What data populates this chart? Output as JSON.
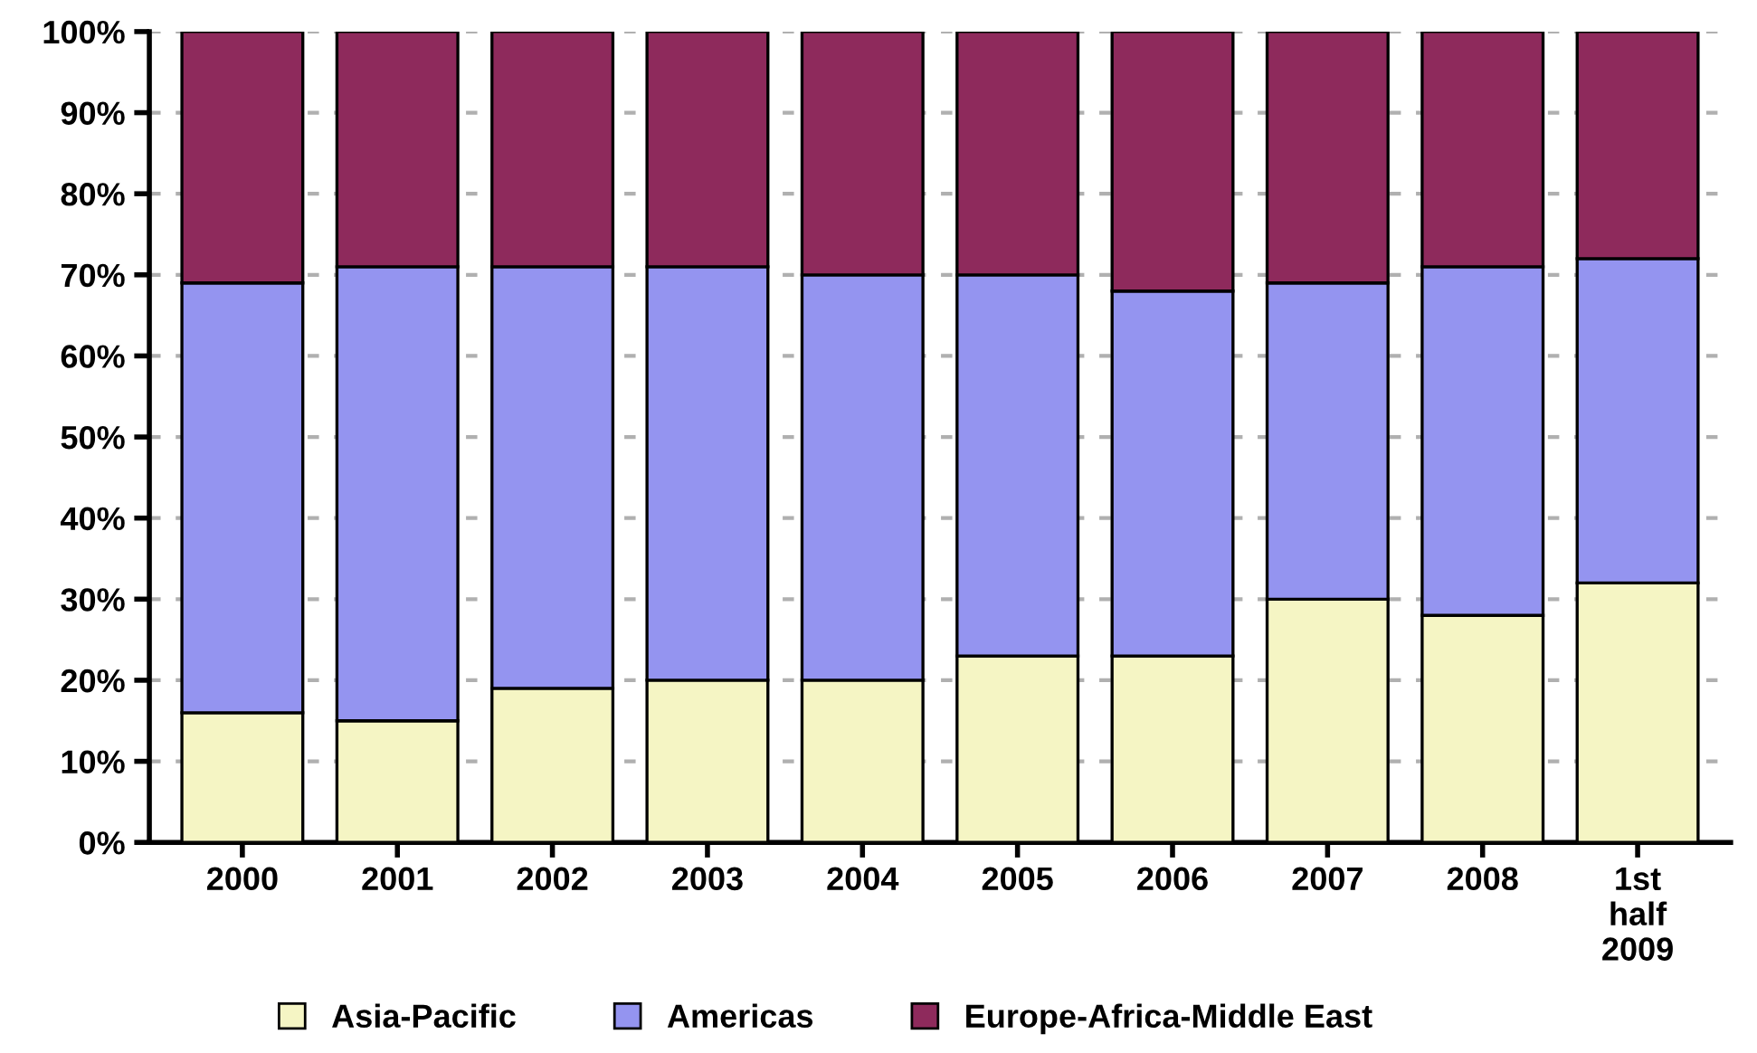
{
  "chart_data": {
    "type": "bar",
    "stacked": true,
    "categories": [
      "2000",
      "2001",
      "2002",
      "2003",
      "2004",
      "2005",
      "2006",
      "2007",
      "2008",
      "1st\nhalf\n2009"
    ],
    "series": [
      {
        "name": "Asia-Pacific",
        "color": "#f5f5c4",
        "values": [
          16,
          15,
          19,
          20,
          20,
          23,
          23,
          30,
          28,
          32
        ]
      },
      {
        "name": "Americas",
        "color": "#9494f0",
        "values": [
          53,
          56,
          52,
          51,
          50,
          47,
          45,
          39,
          43,
          40
        ]
      },
      {
        "name": "Europe-Africa-Middle East",
        "color": "#8e2a5c",
        "values": [
          31,
          29,
          29,
          29,
          30,
          30,
          32,
          31,
          29,
          28
        ]
      }
    ],
    "ylim": [
      0,
      100
    ],
    "yticks": [
      {
        "value": 0,
        "label": "0%"
      },
      {
        "value": 10,
        "label": "10%"
      },
      {
        "value": 20,
        "label": "20%"
      },
      {
        "value": 30,
        "label": "30%"
      },
      {
        "value": 40,
        "label": "40%"
      },
      {
        "value": 50,
        "label": "50%"
      },
      {
        "value": 60,
        "label": "60%"
      },
      {
        "value": 70,
        "label": "70%"
      },
      {
        "value": 80,
        "label": "80%"
      },
      {
        "value": 90,
        "label": "90%"
      },
      {
        "value": 100,
        "label": "100%"
      }
    ],
    "grid": "y",
    "legend": "bottom"
  }
}
